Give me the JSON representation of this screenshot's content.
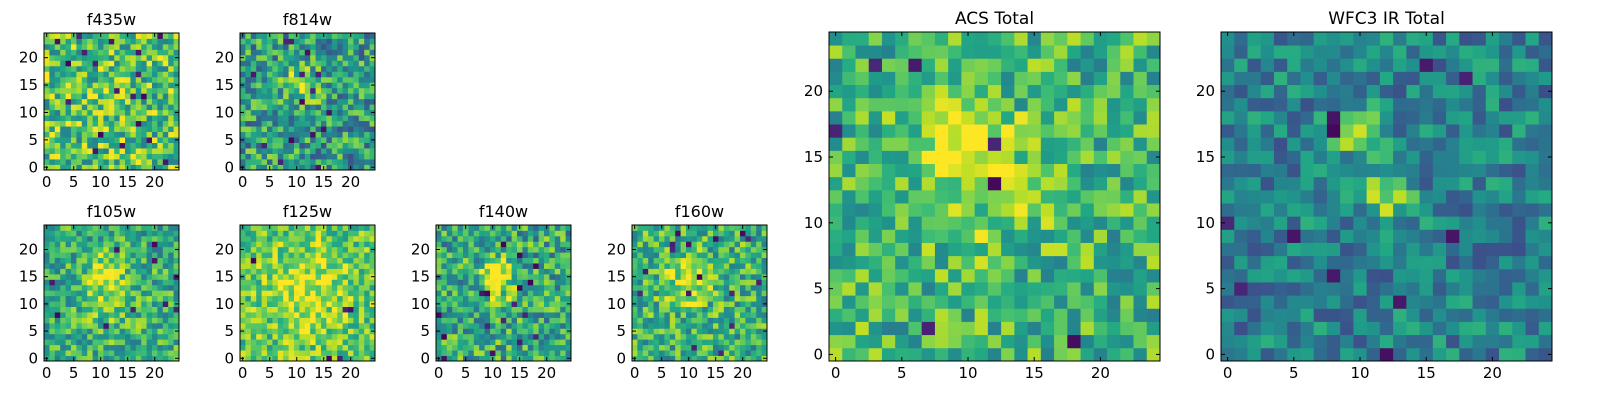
{
  "chart_data": [
    {
      "type": "heatmap",
      "title": "f435w",
      "grid_size": 25,
      "xticks": [
        0,
        5,
        10,
        15,
        20
      ],
      "yticks": [
        0,
        5,
        10,
        15,
        20
      ],
      "xlim": [
        -0.5,
        24.5
      ],
      "ylim": [
        -0.5,
        24.5
      ],
      "colormap": "viridis",
      "feature": "uniform noise",
      "grid": false
    },
    {
      "type": "heatmap",
      "title": "f814w",
      "grid_size": 25,
      "xticks": [
        0,
        5,
        10,
        15,
        20
      ],
      "yticks": [
        0,
        5,
        10,
        15,
        20
      ],
      "xlim": [
        -0.5,
        24.5
      ],
      "ylim": [
        -0.5,
        24.5
      ],
      "colormap": "viridis",
      "feature": "faint source near (11, 15)",
      "grid": false
    },
    {
      "type": "heatmap",
      "title": "f105w",
      "grid_size": 25,
      "xticks": [
        0,
        5,
        10,
        15,
        20
      ],
      "yticks": [
        0,
        5,
        10,
        15,
        20
      ],
      "xlim": [
        -0.5,
        24.5
      ],
      "ylim": [
        -0.5,
        24.5
      ],
      "colormap": "viridis",
      "feature": "source near (11, 16)",
      "grid": false
    },
    {
      "type": "heatmap",
      "title": "f125w",
      "grid_size": 25,
      "xticks": [
        0,
        5,
        10,
        15,
        20
      ],
      "yticks": [
        0,
        5,
        10,
        15,
        20
      ],
      "xlim": [
        -0.5,
        24.5
      ],
      "ylim": [
        -0.5,
        24.5
      ],
      "colormap": "viridis",
      "feature": "extended bright emission",
      "grid": false
    },
    {
      "type": "heatmap",
      "title": "f140w",
      "grid_size": 25,
      "xticks": [
        0,
        5,
        10,
        15,
        20
      ],
      "yticks": [
        0,
        5,
        10,
        15,
        20
      ],
      "xlim": [
        -0.5,
        24.5
      ],
      "ylim": [
        -0.5,
        24.5
      ],
      "colormap": "viridis",
      "feature": "source near (11, 16)",
      "grid": false
    },
    {
      "type": "heatmap",
      "title": "f160w",
      "grid_size": 25,
      "xticks": [
        0,
        5,
        10,
        15,
        20
      ],
      "yticks": [
        0,
        5,
        10,
        15,
        20
      ],
      "xlim": [
        -0.5,
        24.5
      ],
      "ylim": [
        -0.5,
        24.5
      ],
      "colormap": "viridis",
      "feature": "source near (10, 14)",
      "grid": false
    },
    {
      "type": "heatmap",
      "title": "ACS Total",
      "grid_size": 25,
      "xticks": [
        0,
        5,
        10,
        15,
        20
      ],
      "yticks": [
        0,
        5,
        10,
        15,
        20
      ],
      "xlim": [
        -0.5,
        24.5
      ],
      "ylim": [
        -0.5,
        24.5
      ],
      "colormap": "viridis",
      "feature": "bright region near (10, 17)",
      "grid": false
    },
    {
      "type": "heatmap",
      "title": "WFC3 IR Total",
      "grid_size": 25,
      "xticks": [
        0,
        5,
        10,
        15,
        20
      ],
      "yticks": [
        0,
        5,
        10,
        15,
        20
      ],
      "xlim": [
        -0.5,
        24.5
      ],
      "ylim": [
        -0.5,
        24.5
      ],
      "colormap": "viridis",
      "feature": "bright sources at (10, 17) and (12, 12)",
      "grid": false
    }
  ]
}
